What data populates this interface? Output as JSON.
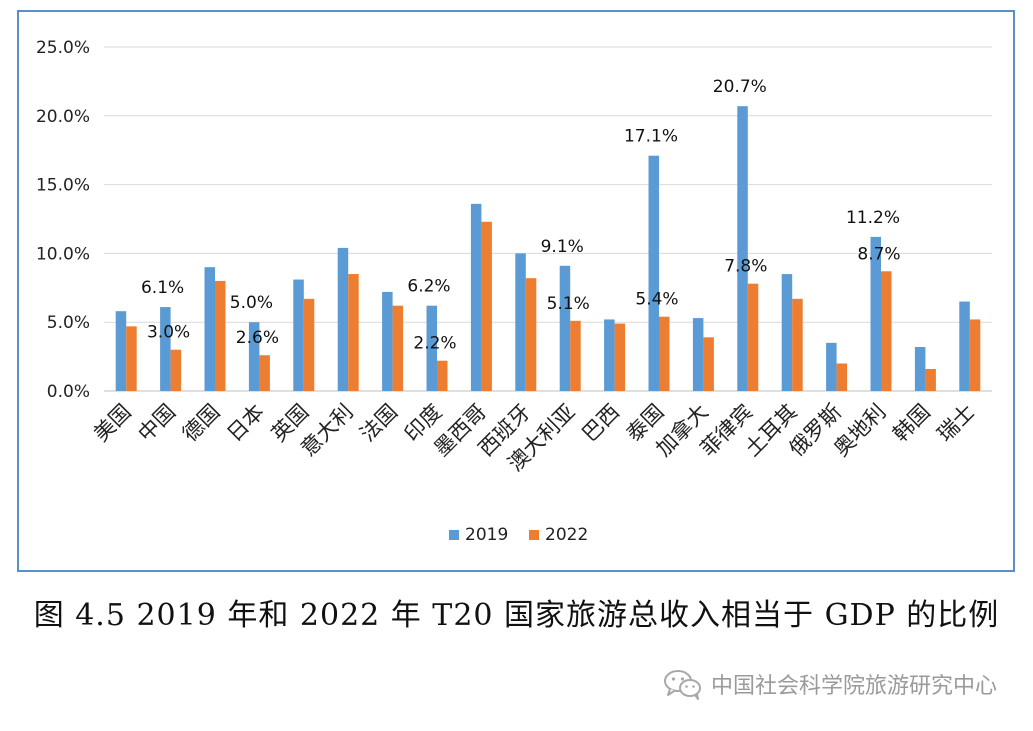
{
  "chart_data": {
    "type": "bar",
    "title": "",
    "xlabel": "",
    "ylabel": "",
    "ylim": [
      0,
      25
    ],
    "y_ticks": [
      "0.0%",
      "5.0%",
      "10.0%",
      "15.0%",
      "20.0%",
      "25.0%"
    ],
    "grid": true,
    "legend_position": "bottom-center",
    "categories": [
      "美国",
      "中国",
      "德国",
      "日本",
      "英国",
      "意大利",
      "法国",
      "印度",
      "墨西哥",
      "西班牙",
      "澳大利亚",
      "巴西",
      "泰国",
      "加拿大",
      "菲律宾",
      "土耳其",
      "俄罗斯",
      "奥地利",
      "韩国",
      "瑞士"
    ],
    "series": [
      {
        "name": "2019",
        "color": "#5b9bd5",
        "values": [
          5.8,
          6.1,
          9.0,
          5.0,
          8.1,
          10.4,
          7.2,
          6.2,
          13.6,
          10.0,
          9.1,
          5.2,
          17.1,
          5.3,
          20.7,
          8.5,
          3.5,
          11.2,
          3.2,
          6.5
        ]
      },
      {
        "name": "2022",
        "color": "#ed7d31",
        "values": [
          4.7,
          3.0,
          8.0,
          2.6,
          6.7,
          8.5,
          6.2,
          2.2,
          12.3,
          8.2,
          5.1,
          4.9,
          5.4,
          3.9,
          7.8,
          6.7,
          2.0,
          8.7,
          1.6,
          5.2
        ]
      }
    ],
    "annotations": [
      {
        "category": "中国",
        "series": "2019",
        "text": "6.1%"
      },
      {
        "category": "中国",
        "series": "2022",
        "text": "3.0%"
      },
      {
        "category": "日本",
        "series": "2019",
        "text": "5.0%"
      },
      {
        "category": "日本",
        "series": "2022",
        "text": "2.6%"
      },
      {
        "category": "印度",
        "series": "2019",
        "text": "6.2%"
      },
      {
        "category": "印度",
        "series": "2022",
        "text": "2.2%"
      },
      {
        "category": "澳大利亚",
        "series": "2019",
        "text": "9.1%"
      },
      {
        "category": "澳大利亚",
        "series": "2022",
        "text": "5.1%"
      },
      {
        "category": "泰国",
        "series": "2019",
        "text": "17.1%"
      },
      {
        "category": "泰国",
        "series": "2022",
        "text": "5.4%"
      },
      {
        "category": "菲律宾",
        "series": "2019",
        "text": "20.7%"
      },
      {
        "category": "菲律宾",
        "series": "2022",
        "text": "7.8%"
      },
      {
        "category": "奥地利",
        "series": "2019",
        "text": "11.2%"
      },
      {
        "category": "奥地利",
        "series": "2022",
        "text": "8.7%"
      }
    ]
  },
  "caption": "图 4.5 2019 年和 2022 年 T20 国家旅游总收入相当于 GDP 的比例",
  "watermark": {
    "icon": "wechat-icon",
    "text": "中国社会科学院旅游研究中心"
  }
}
